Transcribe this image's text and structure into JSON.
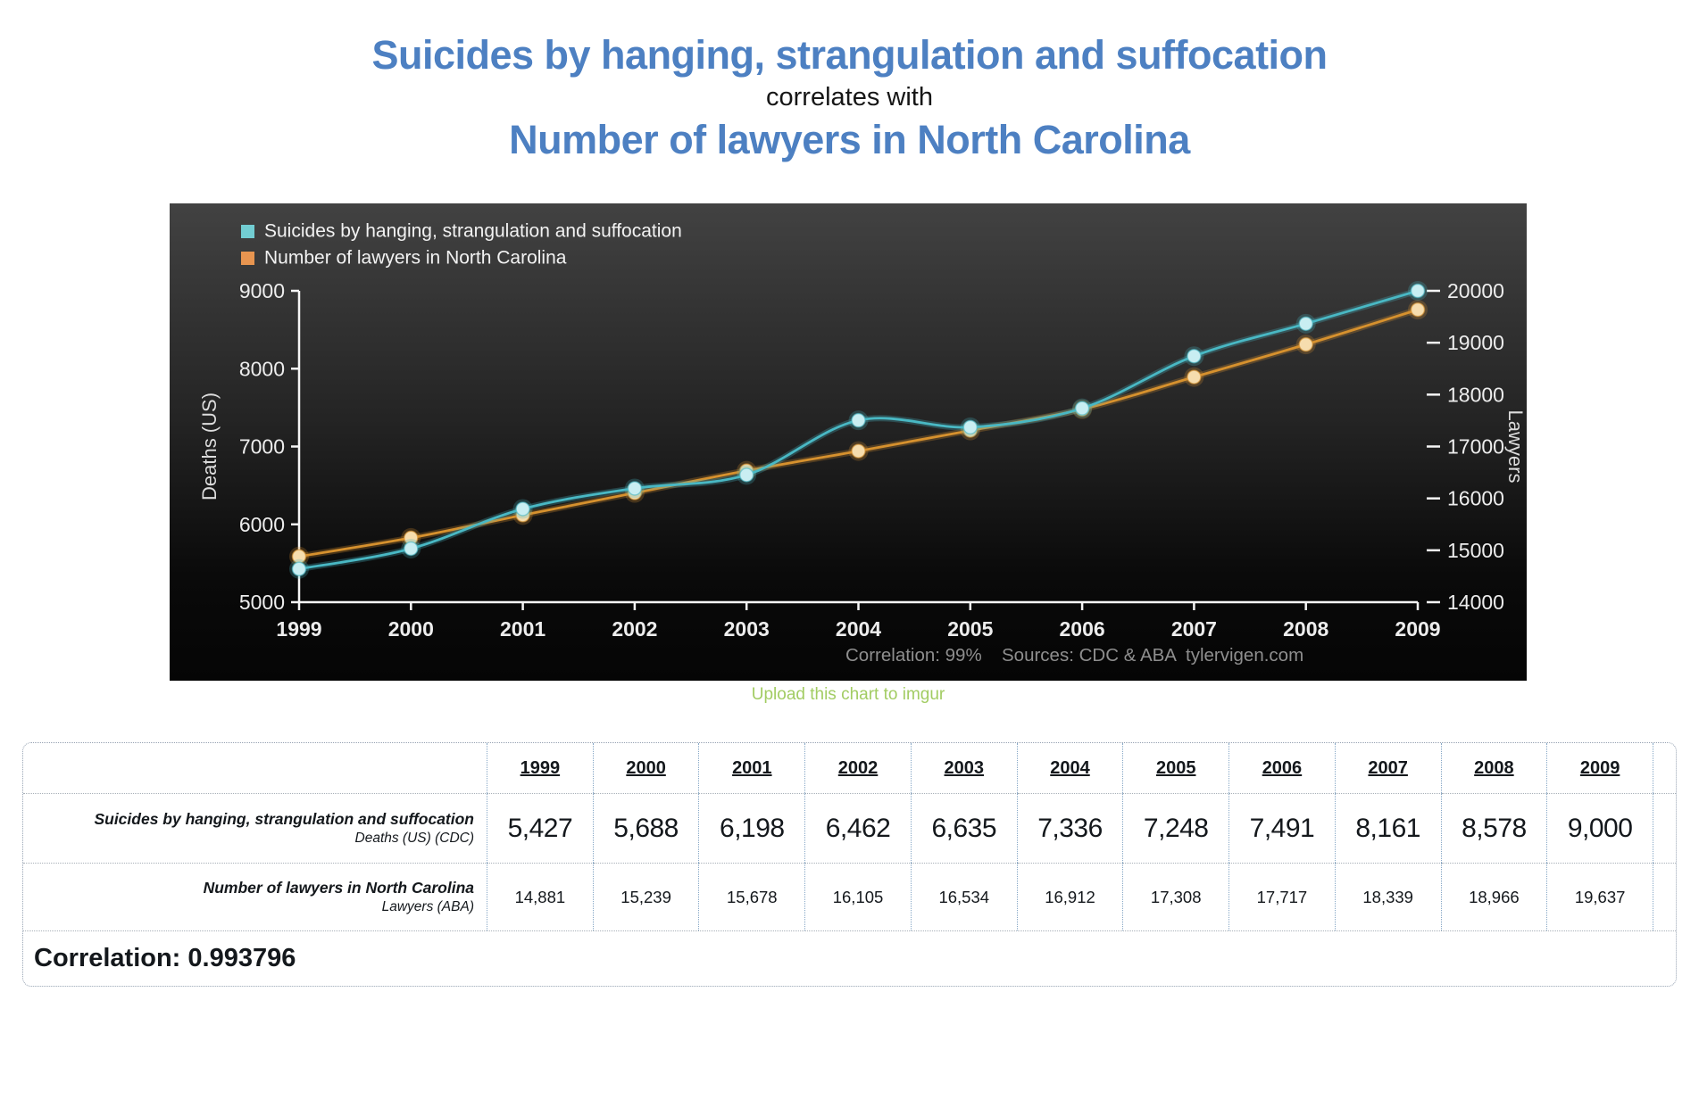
{
  "page": {
    "title_line1": "Suicides by hanging, strangulation and suffocation",
    "connector": "correlates with",
    "title_line2": "Number of lawyers in North Carolina",
    "upload_link": "Upload this chart to imgur"
  },
  "colors": {
    "title_blue": "#4d80c2",
    "link_green": "#a2cc63",
    "suicides_line": "#49b8c4",
    "suicides_marker": "#c9eef2",
    "lawyers_line": "#d6912e",
    "lawyers_marker": "#f6ddae",
    "chart_text": "#ededed",
    "chart_footer_text": "#8e8e8e"
  },
  "chart_data": {
    "type": "line",
    "x": [
      1999,
      2000,
      2001,
      2002,
      2003,
      2004,
      2005,
      2006,
      2007,
      2008,
      2009
    ],
    "series": [
      {
        "name": "Suicides by hanging, strangulation and suffocation",
        "axis": "left",
        "color": "#49b8c4",
        "marker_color": "#c9eef2",
        "values": [
          5427,
          5688,
          6198,
          6462,
          6635,
          7336,
          7248,
          7491,
          8161,
          8578,
          9000
        ]
      },
      {
        "name": "Number of lawyers in North Carolina",
        "axis": "right",
        "color": "#d6912e",
        "marker_color": "#f6ddae",
        "values": [
          14881,
          15239,
          15678,
          16105,
          16534,
          16912,
          17308,
          17717,
          18339,
          18966,
          19637
        ]
      }
    ],
    "left_axis": {
      "label": "Deaths (US)",
      "min": 5000,
      "max": 9000,
      "ticks": [
        5000,
        6000,
        7000,
        8000,
        9000
      ]
    },
    "right_axis": {
      "label": "Lawyers",
      "min": 14000,
      "max": 20000,
      "ticks": [
        14000,
        15000,
        16000,
        17000,
        18000,
        19000,
        20000
      ]
    },
    "footer": {
      "correlation": "Correlation: 99%",
      "sources": "Sources: CDC & ABA",
      "site": "tylervigen.com"
    },
    "legend_position": "top-left",
    "grid": false,
    "background": "dark-gradient"
  },
  "table": {
    "years": [
      "1999",
      "2000",
      "2001",
      "2002",
      "2003",
      "2004",
      "2005",
      "2006",
      "2007",
      "2008",
      "2009"
    ],
    "rows": [
      {
        "label_line1": "Suicides by hanging, strangulation and suffocation",
        "label_line2": "Deaths (US) (CDC)",
        "values": [
          "5,427",
          "5,688",
          "6,198",
          "6,462",
          "6,635",
          "7,336",
          "7,248",
          "7,491",
          "8,161",
          "8,578",
          "9,000"
        ]
      },
      {
        "label_line1": "Number of lawyers in North Carolina",
        "label_line2": "Lawyers (ABA)",
        "values": [
          "14,881",
          "15,239",
          "15,678",
          "16,105",
          "16,534",
          "16,912",
          "17,308",
          "17,717",
          "18,339",
          "18,966",
          "19,637"
        ]
      }
    ],
    "correlation_label": "Correlation: 0.993796"
  }
}
